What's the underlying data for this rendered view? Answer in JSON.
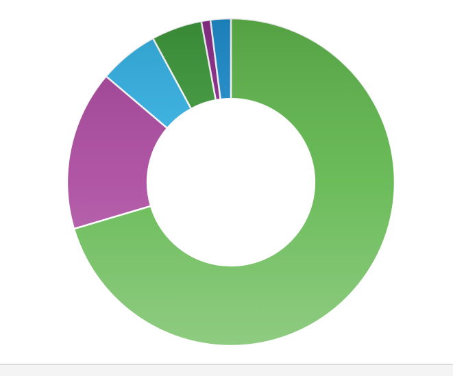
{
  "chart_data": {
    "type": "donut",
    "values": [
      70.4,
      15.8,
      5.9,
      5.0,
      0.9,
      2.0
    ],
    "colors": [
      "#5fb64c",
      "#a9479d",
      "#35b3e6",
      "#3f9a3c",
      "#8e2f8d",
      "#1f8fd0"
    ],
    "inner_radius_ratio": 0.51
  }
}
